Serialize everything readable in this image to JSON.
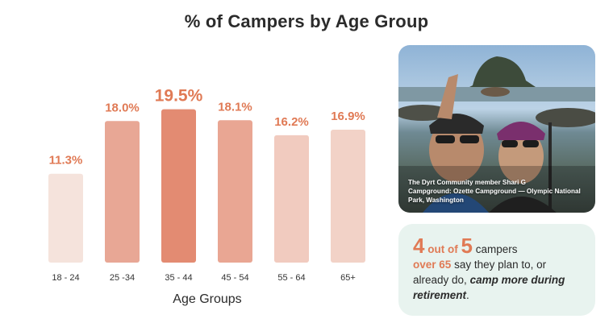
{
  "chart_data": {
    "type": "bar",
    "title": "% of Campers by Age Group",
    "xlabel": "Age Groups",
    "ylabel": "",
    "ylim": [
      0,
      21
    ],
    "categories": [
      "18 - 24",
      "25 -34",
      "35 - 44",
      "45 - 54",
      "55 - 64",
      "65+"
    ],
    "values": [
      11.3,
      18.0,
      19.5,
      18.1,
      16.2,
      16.9
    ],
    "value_labels": [
      "11.3%",
      "18.0%",
      "19.5%",
      "18.1%",
      "16.2%",
      "16.9%"
    ],
    "bar_colors": [
      "#f5e3dc",
      "#e8a795",
      "#e38b72",
      "#e9a693",
      "#f1cbbf",
      "#f2d2c7"
    ],
    "label_color": "#e07a55",
    "grid": false
  },
  "photo": {
    "caption_line1": "The Dyrt Community member Shari G",
    "caption_line2": "Campground: Ozette Campground — Olympic National Park, Washington"
  },
  "stat": {
    "num1": "4",
    "out_of": "out of",
    "num2": "5",
    "campers": "campers",
    "over65": "over 65",
    "text1": "say they plan to, or already do,",
    "emph": "camp more during retirement",
    "period": "."
  },
  "colors": {
    "accent": "#e07a55",
    "card_bg": "#e8f3ef"
  }
}
